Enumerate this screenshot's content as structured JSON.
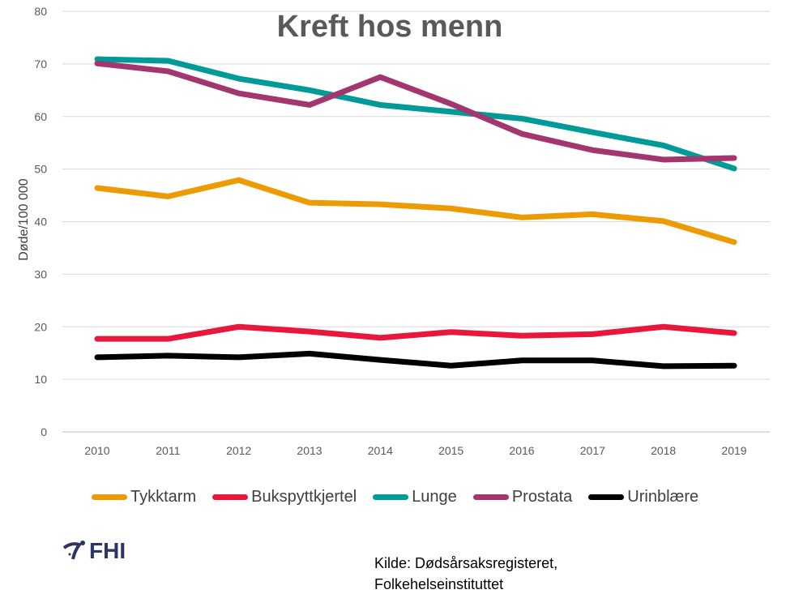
{
  "chart_data": {
    "type": "line",
    "title": "Kreft hos menn",
    "xlabel": "",
    "ylabel": "Døde/100 000",
    "ylim": [
      0,
      80
    ],
    "yticks": [
      0,
      10,
      20,
      30,
      40,
      50,
      60,
      70,
      80
    ],
    "grid": true,
    "legend_position": "bottom",
    "categories": [
      "2010",
      "2011",
      "2012",
      "2013",
      "2014",
      "2015",
      "2016",
      "2017",
      "2018",
      "2019"
    ],
    "series": [
      {
        "name": "Tykktarm",
        "color": "#ED9B04",
        "values": [
          46.4,
          44.8,
          47.9,
          43.6,
          43.3,
          42.5,
          40.8,
          41.4,
          40.1,
          36.1
        ]
      },
      {
        "name": "Bukspyttkjertel",
        "color": "#E8173B",
        "values": [
          17.7,
          17.7,
          20.0,
          19.1,
          17.9,
          19.0,
          18.3,
          18.6,
          20.0,
          18.8
        ]
      },
      {
        "name": "Lunge",
        "color": "#009B96",
        "values": [
          70.9,
          70.6,
          67.2,
          65.0,
          62.2,
          60.9,
          59.6,
          57.0,
          54.5,
          50.1
        ]
      },
      {
        "name": "Prostata",
        "color": "#A3366E",
        "values": [
          70.1,
          68.6,
          64.4,
          62.2,
          67.5,
          62.4,
          56.7,
          53.6,
          51.8,
          52.1
        ]
      },
      {
        "name": "Urinblære",
        "color": "#000000",
        "values": [
          14.2,
          14.5,
          14.2,
          14.9,
          13.7,
          12.6,
          13.6,
          13.6,
          12.5,
          12.6
        ]
      }
    ]
  },
  "source": {
    "line1": "Kilde: Dødsårsaksregisteret,",
    "line2": "Folkehelseinstituttet"
  },
  "logo": {
    "text": "FHI"
  }
}
